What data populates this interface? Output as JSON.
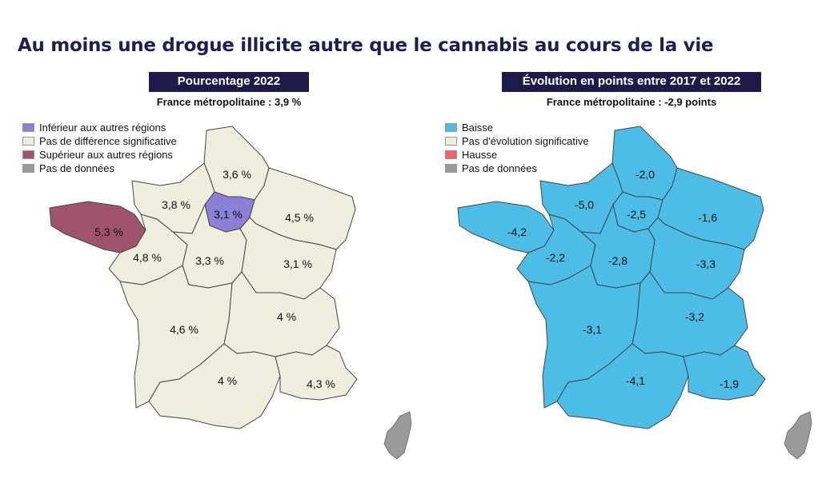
{
  "title": "Au moins une drogue illicite autre que le cannabis au cours de la vie",
  "colors": {
    "header_bg": "#1e1a4a",
    "neutral": "#eeeede",
    "lower": "#8b7fd6",
    "higher": "#a0536d",
    "baisse": "#4cbde6",
    "hausse": "#f06464",
    "no_data": "#9a9a9a"
  },
  "left_panel": {
    "header": "Pourcentage 2022",
    "subtitle": "France métropolitaine : 3,9 %",
    "legend": [
      {
        "label": "Inférieur aux autres régions",
        "color": "#8b7fd6"
      },
      {
        "label": "Pas de différence significative",
        "color": "#eeeede"
      },
      {
        "label": "Supérieur aux autres régions",
        "color": "#a0536d"
      },
      {
        "label": "Pas de données",
        "color": "#9a9a9a"
      }
    ],
    "regions": {
      "hauts_de_france": "3,6 %",
      "normandie": "3,8 %",
      "ile_de_france": "3,1 %",
      "grand_est": "4,5 %",
      "bretagne": "5,3 %",
      "pays_de_la_loire": "4,8 %",
      "centre_val_de_loire": "3,3 %",
      "bourgogne_franche_comte": "3,1 %",
      "nouvelle_aquitaine": "4,6 %",
      "auvergne_rhone_alpes": "4 %",
      "occitanie": "4 %",
      "provence_alpes_cote_azur": "4,3 %"
    }
  },
  "right_panel": {
    "header": "Évolution en points entre 2017 et 2022",
    "subtitle": "France métropolitaine : -2,9 points",
    "legend": [
      {
        "label": "Baisse",
        "color": "#4cbde6"
      },
      {
        "label": "Pas d'évolution significative",
        "color": "#eeeede"
      },
      {
        "label": "Hausse",
        "color": "#f06464"
      },
      {
        "label": "Pas de données",
        "color": "#9a9a9a"
      }
    ],
    "regions": {
      "hauts_de_france": "-2,0",
      "normandie": "-5,0",
      "ile_de_france": "-2,5",
      "grand_est": "-1,6",
      "bretagne": "-4,2",
      "pays_de_la_loire": "-2,2",
      "centre_val_de_loire": "-2,8",
      "bourgogne_franche_comte": "-3,3",
      "nouvelle_aquitaine": "-3,1",
      "auvergne_rhone_alpes": "-3,2",
      "occitanie": "-4,1",
      "provence_alpes_cote_azur": "-1,9"
    }
  }
}
